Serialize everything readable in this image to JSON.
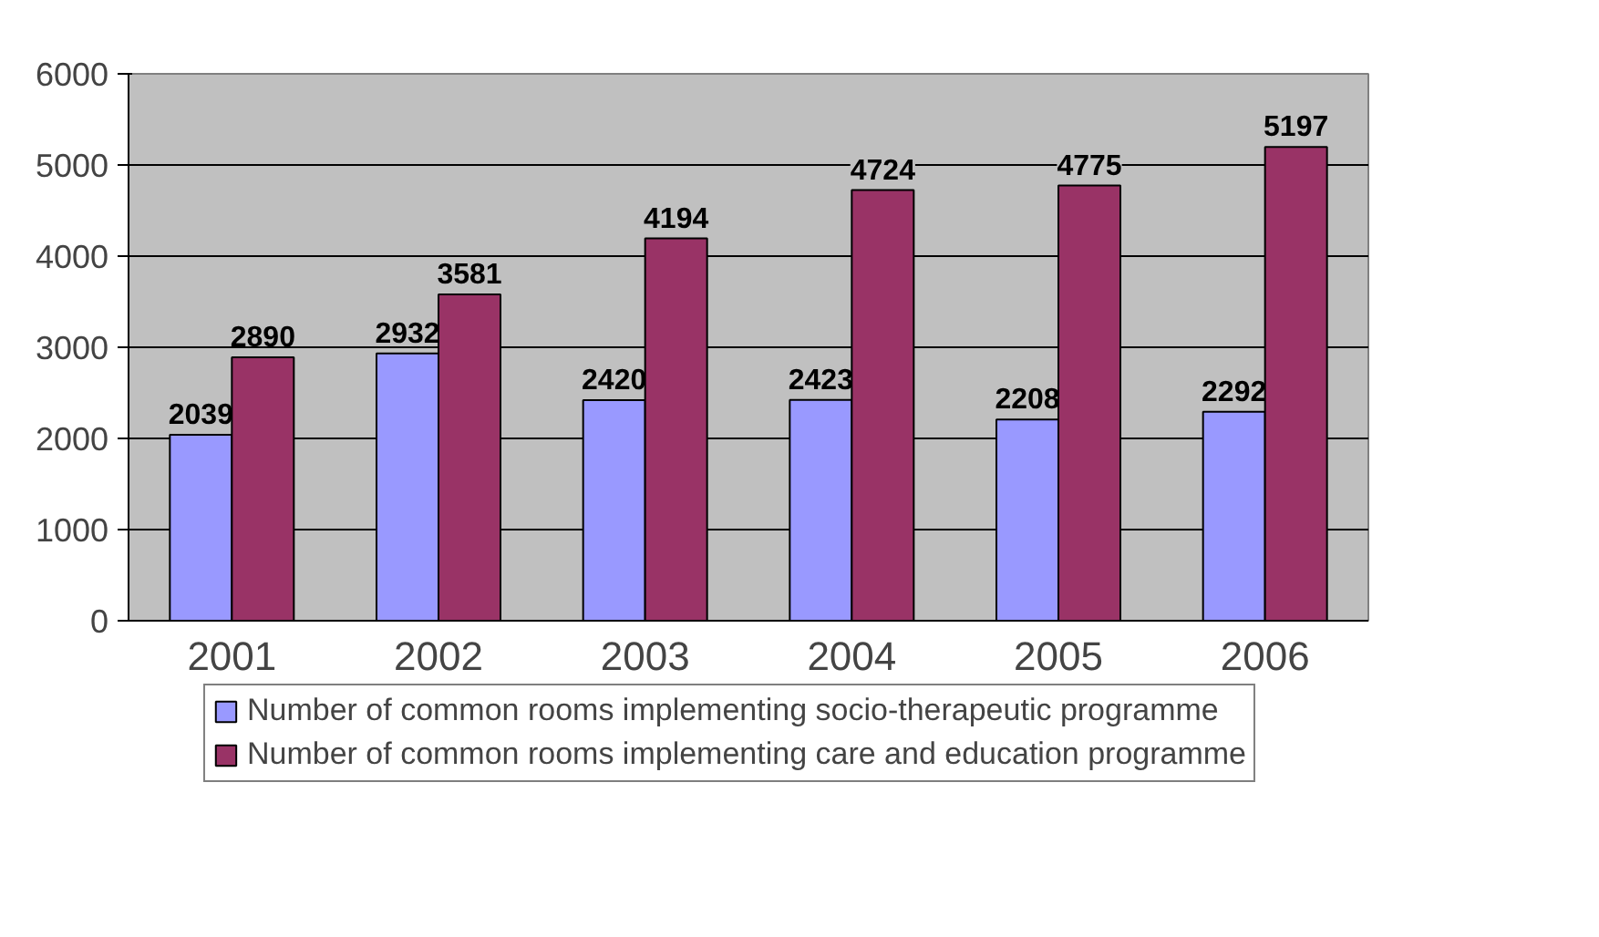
{
  "chart_data": {
    "type": "bar",
    "categories": [
      "2001",
      "2002",
      "2003",
      "2004",
      "2005",
      "2006"
    ],
    "series": [
      {
        "name": "Number of common rooms implementing socio-therapeutic programme",
        "color": "#9999ff",
        "values": [
          2039,
          2932,
          2420,
          2423,
          2208,
          2292
        ]
      },
      {
        "name": "Number of common rooms implementing care and education programme",
        "color": "#993366",
        "values": [
          2890,
          3581,
          4194,
          4724,
          4775,
          5197
        ]
      }
    ],
    "ylim": [
      0,
      6000
    ],
    "yticks": [
      0,
      1000,
      2000,
      3000,
      4000,
      5000,
      6000
    ],
    "grid": "y",
    "legend": "bottom",
    "data_labels": true
  }
}
